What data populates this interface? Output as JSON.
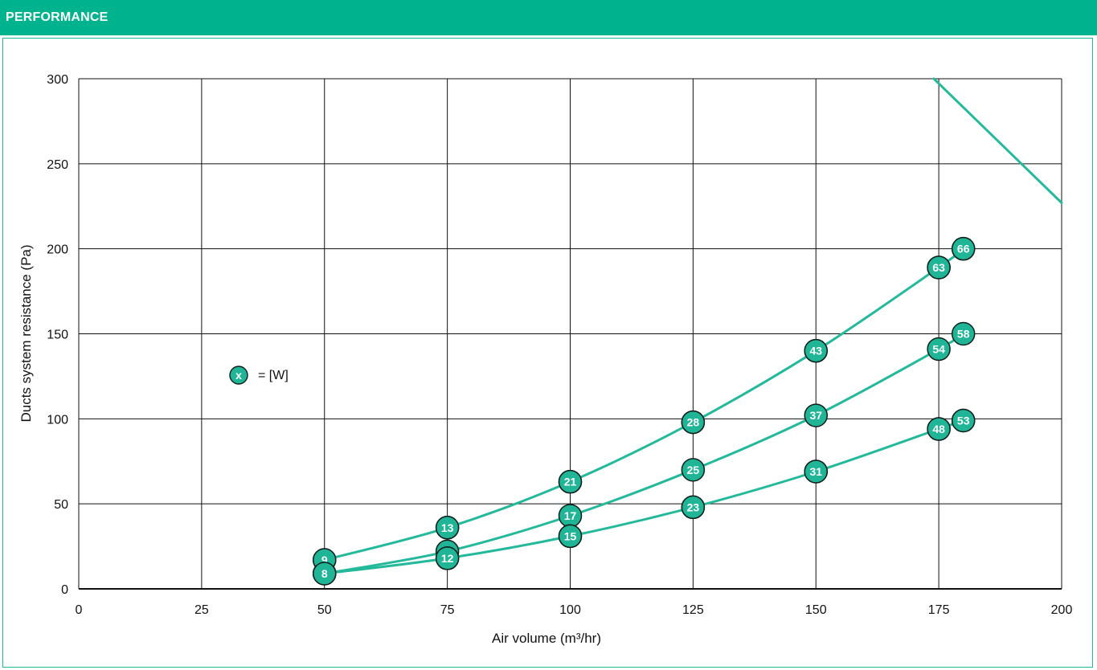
{
  "header": {
    "title": "PERFORMANCE",
    "color": "#00b38f"
  },
  "colors": {
    "curve": "#25b99b",
    "marker_fill": "#20b596",
    "marker_stroke": "#0d1f1a",
    "grid": "#111111",
    "panel_border": "#1fb99f"
  },
  "legend": {
    "marker_label": "x",
    "text": "= [W]"
  },
  "chart_data": {
    "type": "line",
    "xlabel": "Air volume (m³/hr)",
    "ylabel": "Ducts system resistance (Pa)",
    "xlim": [
      0,
      200
    ],
    "ylim": [
      0,
      300
    ],
    "xticks": [
      0,
      25,
      50,
      75,
      100,
      125,
      150,
      175,
      200
    ],
    "yticks": [
      0,
      50,
      100,
      150,
      200,
      250,
      300
    ],
    "grid": true,
    "series": [
      {
        "points": [
          {
            "x": 50,
            "y": 17,
            "label": "9"
          },
          {
            "x": 75,
            "y": 36,
            "label": "13"
          },
          {
            "x": 100,
            "y": 63,
            "label": "21"
          },
          {
            "x": 125,
            "y": 98,
            "label": "28"
          },
          {
            "x": 150,
            "y": 140,
            "label": "43"
          },
          {
            "x": 175,
            "y": 189,
            "label": "63"
          },
          {
            "x": 180,
            "y": 200,
            "label": "66"
          }
        ]
      },
      {
        "points": [
          {
            "x": 50,
            "y": 9,
            "label": ""
          },
          {
            "x": 75,
            "y": 22,
            "label": ""
          },
          {
            "x": 100,
            "y": 43,
            "label": "17"
          },
          {
            "x": 125,
            "y": 70,
            "label": "25"
          },
          {
            "x": 150,
            "y": 102,
            "label": "37"
          },
          {
            "x": 175,
            "y": 141,
            "label": "54"
          },
          {
            "x": 180,
            "y": 150,
            "label": "58"
          }
        ]
      },
      {
        "points": [
          {
            "x": 50,
            "y": 9,
            "label": "8"
          },
          {
            "x": 75,
            "y": 18,
            "label": "12"
          },
          {
            "x": 100,
            "y": 31,
            "label": "15"
          },
          {
            "x": 125,
            "y": 48,
            "label": "23"
          },
          {
            "x": 150,
            "y": 69,
            "label": "31"
          },
          {
            "x": 175,
            "y": 94,
            "label": "48"
          },
          {
            "x": 180,
            "y": 99,
            "label": "53"
          }
        ]
      },
      {
        "points": [
          {
            "x": 174,
            "y": 300,
            "label": ""
          },
          {
            "x": 200,
            "y": 227,
            "label": ""
          }
        ]
      }
    ]
  }
}
